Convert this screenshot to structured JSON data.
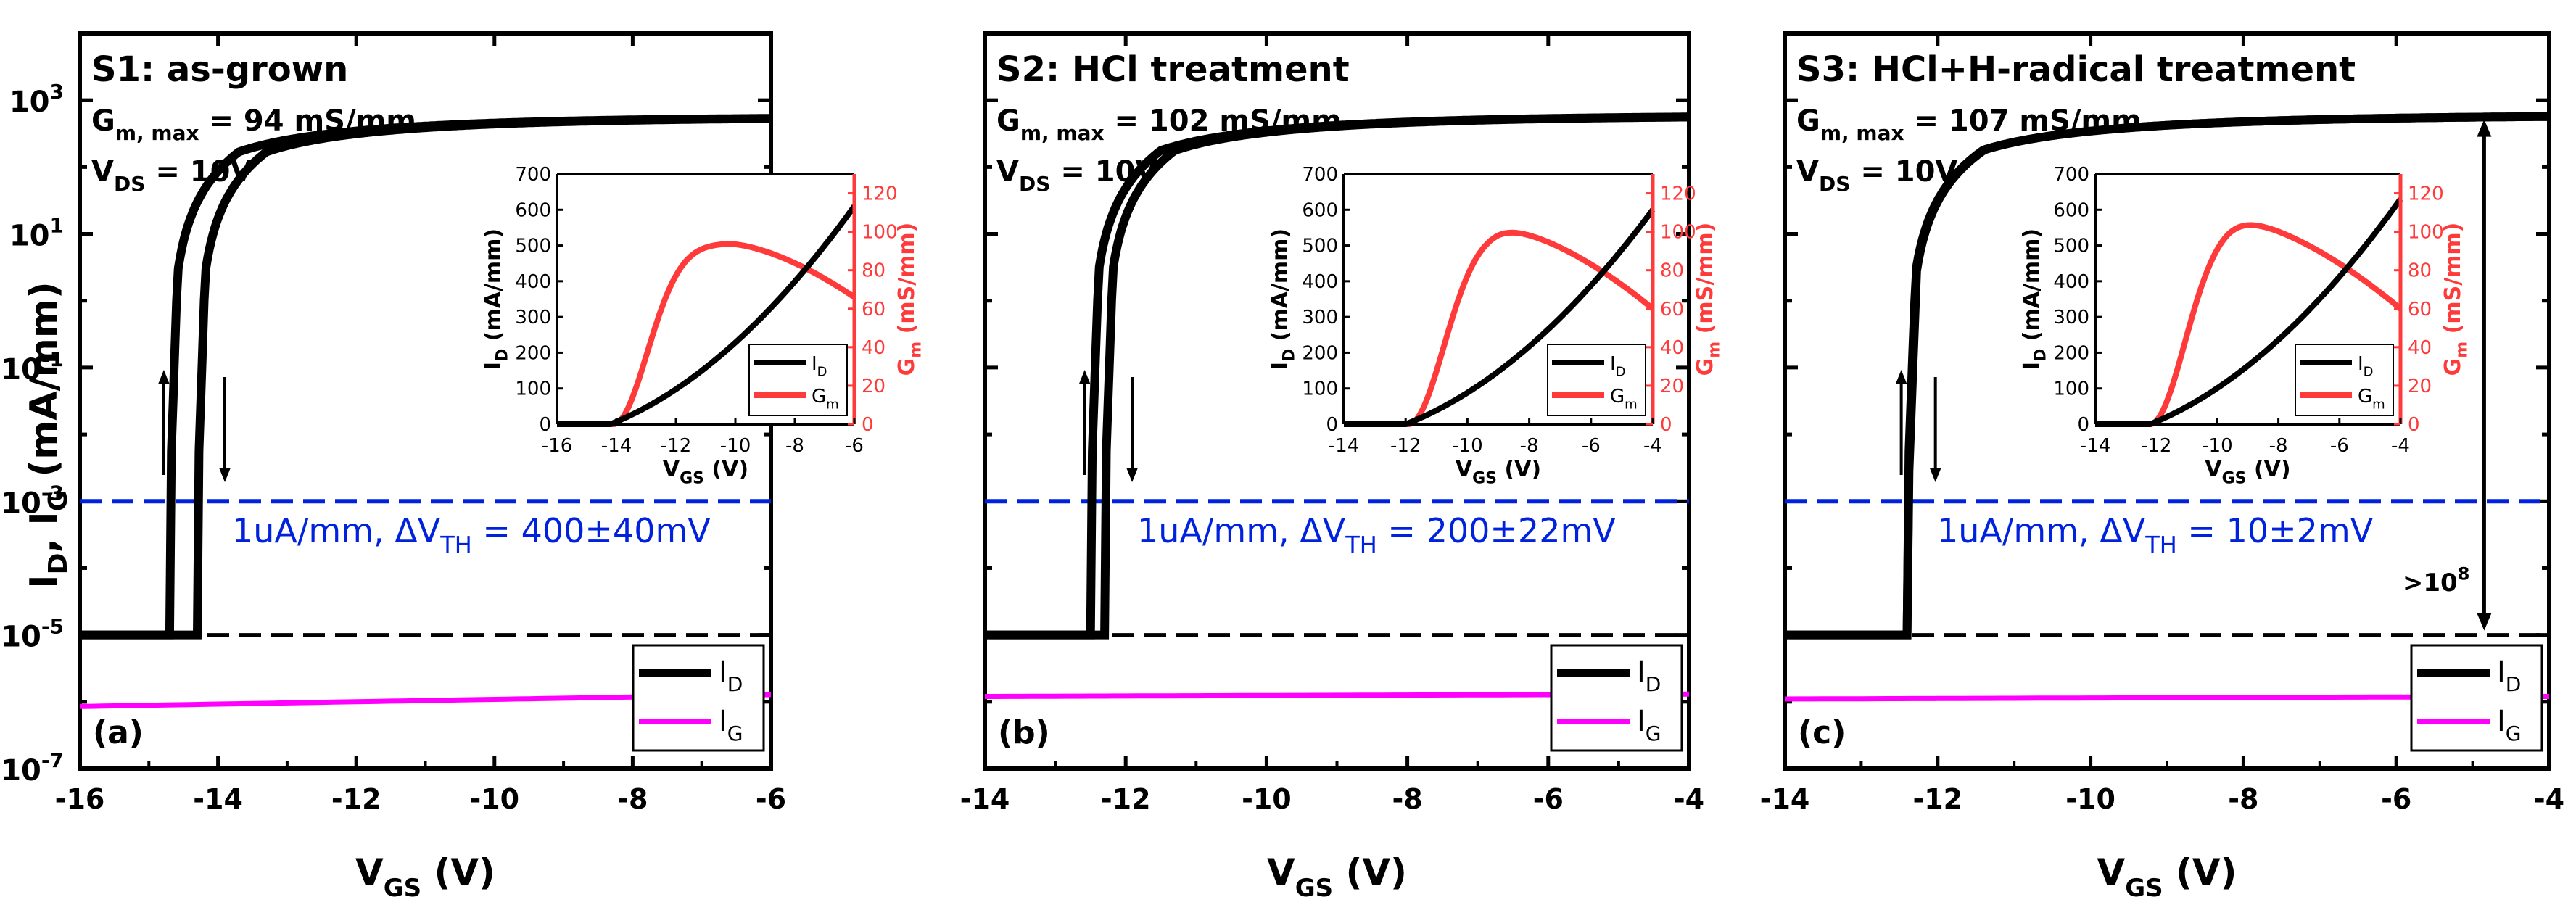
{
  "figure": {
    "y_axis_label_main": "I",
    "y_axis_label_sub1": "D",
    "y_axis_label_sep": ", I",
    "y_axis_label_sub2": "G",
    "y_axis_label_unit": " (mA/mm)",
    "x_axis_label_main": "V",
    "x_axis_label_sub": "GS",
    "x_axis_label_unit": " (V)"
  },
  "chart_data": [
    {
      "type": "line",
      "panel_label": "(a)",
      "title": "S1: as-grown",
      "gm_prefix": "G",
      "gm_sub": "m, max",
      "gm_value": " = 94 mS/mm",
      "vds_prefix": "V",
      "vds_sub": "DS",
      "vds_value": " = 10V",
      "annotation": "1uA/mm,  ΔV",
      "annotation_sub": "TH",
      "annotation_value": " = 400±40mV",
      "xlim": [
        -16,
        -6
      ],
      "xticks": [
        -16,
        -14,
        -12,
        -10,
        -8,
        -6
      ],
      "ylim_log10": [
        -7,
        4
      ],
      "yticks": [
        "10-7",
        "10-5",
        "10-3",
        "10-1",
        "101",
        "103"
      ],
      "vth_forward": -14.7,
      "vth_reverse": -14.3,
      "i_on": 560,
      "i_off_d": 1e-05,
      "i_g_start": 8.5e-07,
      "i_g_end": 1.28e-06,
      "reference_lines": [
        0.001,
        1e-05
      ],
      "legend": [
        "I_D",
        "I_G"
      ],
      "colors": {
        "id": "#000000",
        "ig": "#ff00ff",
        "ref_blue": "#0022dd",
        "ref_black": "#000000"
      },
      "inset": {
        "xlim": [
          -16,
          -6
        ],
        "xticks": [
          -16,
          -14,
          -12,
          -10,
          -8,
          -6
        ],
        "ylim_left": [
          0,
          700
        ],
        "yticks_left": [
          0,
          100,
          200,
          300,
          400,
          500,
          600,
          700
        ],
        "ylim_right": [
          0,
          130
        ],
        "yticks_right": [
          0,
          20,
          40,
          60,
          80,
          100,
          120
        ],
        "id_threshold": -14.2,
        "id_end": 610,
        "gm_threshold": -14.1,
        "gm_peak_x": -10.3,
        "gm_peak": 94,
        "gm_end": 66,
        "xlabel": "V_GS (V)",
        "ylabel_left": "I_D (mA/mm)",
        "ylabel_right": "G_m (mS/mm)",
        "legend": [
          "I_D",
          "G_m"
        ]
      }
    },
    {
      "type": "line",
      "panel_label": "(b)",
      "title": "S2: HCl treatment",
      "gm_prefix": "G",
      "gm_sub": "m, max",
      "gm_value": " = 102 mS/mm",
      "vds_prefix": "V",
      "vds_sub": "DS",
      "vds_value": " = 10V",
      "annotation": "1uA/mm,  ΔV",
      "annotation_sub": "TH",
      "annotation_value": " = 200±22mV",
      "xlim": [
        -14,
        -4
      ],
      "xticks": [
        -14,
        -12,
        -10,
        -8,
        -6,
        -4
      ],
      "ylim_log10": [
        -7,
        4
      ],
      "vth_forward": -12.5,
      "vth_reverse": -12.3,
      "i_on": 590,
      "i_off_d": 1e-05,
      "i_g_start": 1.2e-06,
      "i_g_end": 1.3e-06,
      "reference_lines": [
        0.001,
        1e-05
      ],
      "legend": [
        "I_D",
        "I_G"
      ],
      "inset": {
        "xlim": [
          -14,
          -4
        ],
        "xticks": [
          -14,
          -12,
          -10,
          -8,
          -6,
          -4
        ],
        "ylim_left": [
          0,
          700
        ],
        "yticks_left": [
          0,
          100,
          200,
          300,
          400,
          500,
          600,
          700
        ],
        "ylim_right": [
          0,
          130
        ],
        "yticks_right": [
          0,
          20,
          40,
          60,
          80,
          100,
          120
        ],
        "id_threshold": -12.0,
        "id_end": 600,
        "gm_threshold": -11.9,
        "gm_peak_x": -9.1,
        "gm_peak": 102,
        "gm_end": 60,
        "xlabel": "V_GS (V)",
        "ylabel_left": "I_D (mA/mm)",
        "ylabel_right": "G_m (mS/mm)",
        "legend": [
          "I_D",
          "G_m"
        ]
      }
    },
    {
      "type": "line",
      "panel_label": "(c)",
      "title": "S3: HCl+H-radical treatment",
      "gm_prefix": "G",
      "gm_sub": "m, max",
      "gm_value": " = 107 mS/mm",
      "vds_prefix": "V",
      "vds_sub": "DS",
      "vds_value": " = 10V",
      "annotation": "1uA/mm,  ΔV",
      "annotation_sub": "TH",
      "annotation_value": " = 10±2mV",
      "ratio_label": ">10",
      "ratio_sup": "8",
      "xlim": [
        -14,
        -4
      ],
      "xticks": [
        -14,
        -12,
        -10,
        -8,
        -6,
        -4
      ],
      "ylim_log10": [
        -7,
        4
      ],
      "vth_forward": -12.4,
      "vth_reverse": -12.39,
      "i_on": 600,
      "i_off_d": 1e-05,
      "i_g_start": 1.1e-06,
      "i_g_end": 1.2e-06,
      "reference_lines": [
        0.001,
        1e-05
      ],
      "legend": [
        "I_D",
        "I_G"
      ],
      "inset": {
        "xlim": [
          -14,
          -4
        ],
        "xticks": [
          -14,
          -12,
          -10,
          -8,
          -6,
          -4
        ],
        "ylim_left": [
          0,
          700
        ],
        "yticks_left": [
          0,
          100,
          200,
          300,
          400,
          500,
          600,
          700
        ],
        "ylim_right": [
          0,
          130
        ],
        "yticks_right": [
          0,
          20,
          40,
          60,
          80,
          100,
          120
        ],
        "id_threshold": -12.2,
        "id_end": 630,
        "gm_threshold": -12.2,
        "gm_peak_x": -9.7,
        "gm_peak": 107,
        "gm_end": 60,
        "xlabel": "V_GS (V)",
        "ylabel_left": "I_D (mA/mm)",
        "ylabel_right": "G_m (mS/mm)",
        "legend": [
          "I_D",
          "G_m"
        ]
      }
    }
  ]
}
